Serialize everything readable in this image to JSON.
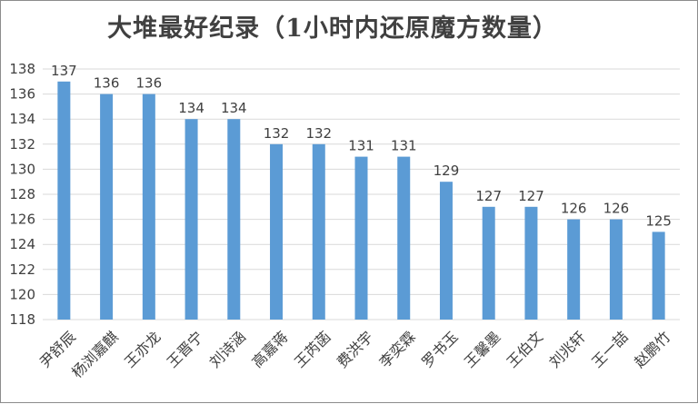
{
  "chart_data": {
    "type": "bar",
    "title": "大堆最好纪录（1小时内还原魔方数量）",
    "categories": [
      "尹舒辰",
      "杨浏嘉麒",
      "王亦龙",
      "王晋宁",
      "刘诗涵",
      "高嘉蒋",
      "王芮菡",
      "费洪宇",
      "李奕霖",
      "罗书玉",
      "王馨墨",
      "王伯文",
      "刘兆轩",
      "王一喆",
      "赵鹏竹"
    ],
    "values": [
      137,
      136,
      136,
      134,
      134,
      132,
      132,
      131,
      131,
      129,
      127,
      127,
      126,
      126,
      125
    ],
    "ylim": [
      118,
      138
    ],
    "yticks": [
      118,
      120,
      122,
      124,
      126,
      128,
      130,
      132,
      134,
      136,
      138
    ],
    "xlabel": "",
    "ylabel": "",
    "grid": true,
    "bar_color": "#5b9bd5",
    "grid_color": "#d9d9d9"
  }
}
